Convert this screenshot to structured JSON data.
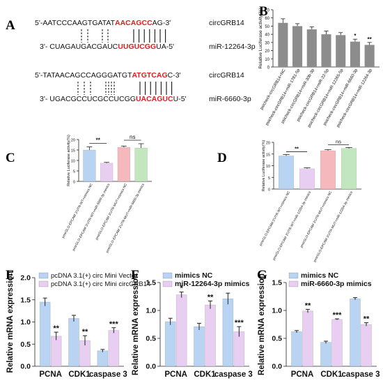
{
  "panel_letters": [
    "A",
    "B",
    "C",
    "D",
    "E",
    "F",
    "G"
  ],
  "panel_a": {
    "pair1": {
      "top_prefix": "5'-AATCCCAAGTGATAT",
      "top_red": "AACAGCC",
      "top_suffix": "AG-3'",
      "top_label": "circGRB14",
      "bottom_prefix": "3'- CUAGAUGACGAUC",
      "bottom_red": "UUGUCGG",
      "bottom_suffix": "UA-5'",
      "bottom_label": "miR-12264-3p"
    },
    "pair2": {
      "top_prefix": "5'-TATAACAGCCAGGGATGT",
      "top_red": "ATGTCAG",
      "top_suffix": "C-3'",
      "top_label": "circGRB14",
      "bottom_prefix": "3'- UGACGCCUCGCCUCGG",
      "bottom_red": "UACAGUC",
      "bottom_suffix": "U-5'",
      "bottom_label": "miR-6660-3p"
    }
  },
  "chart_data": [
    {
      "panel": "B",
      "type": "bar",
      "ylabel": "Relative Luciferase activity(%)",
      "ylim": [
        0,
        70
      ],
      "yticks": [
        0,
        10,
        20,
        30,
        40,
        50,
        60,
        70
      ],
      "categories": [
        "psicheck-circGRB14+NC",
        "psicheck-circGRB14+miR-1781-5p",
        "psicheck-circGRB14+miR-30b-3p",
        "psicheck-circGRB14+miR-22-5p",
        "psicheck-circGRB14+miR-12265-5p",
        "psicheck-circGRB14+miR-6660-3p",
        "psicheck-circGRB14+miR-12264-3p"
      ],
      "values": [
        54,
        50,
        46,
        40,
        39,
        31,
        27
      ],
      "errors": [
        5,
        3,
        3,
        4,
        3,
        3,
        3
      ],
      "significance": [
        "",
        "",
        "",
        "",
        "",
        "*",
        "**"
      ],
      "color": "#8c8c8c"
    },
    {
      "panel": "C",
      "type": "bar",
      "ylabel": "Relative Luciferase activity(%)",
      "ylim": [
        0,
        20
      ],
      "yticks": [
        0,
        5,
        10,
        15,
        20
      ],
      "categories": [
        "pmirGLO-EPCAM 3'UTR-WT+mimics NC",
        "pmirGLO-EPCAM 3'UTR-WT+miR-6660-3p mimics",
        "pmirGLO-EPCAM 3'UTR-MUT+mimics NC",
        "pmirGLO-EPCAM 3'UTR-MUT+miR-6660-3p mimics"
      ],
      "values": [
        15,
        8.7,
        16.3,
        16
      ],
      "errors": [
        1.5,
        0.4,
        0.6,
        2
      ],
      "colors": [
        "#b8d4f2",
        "#e8cff2",
        "#f5b9bd",
        "#c2e6bd"
      ],
      "brackets": [
        {
          "from": 0,
          "to": 1,
          "label": "**"
        },
        {
          "from": 2,
          "to": 3,
          "label": "ns"
        }
      ]
    },
    {
      "panel": "D",
      "type": "bar",
      "ylabel": "Relative Luciferase activity(%)",
      "ylim": [
        0,
        20
      ],
      "yticks": [
        0,
        5,
        10,
        15,
        20
      ],
      "categories": [
        "pmirGLO-EPCAM 3'UTR-WT+mimics NC",
        "pmirGLO-EPCAM 3'UTR-WT+miR-12264-3p mimics",
        "pmirGLO-EPCAM 3'UTR-MUT+mimics NC",
        "pmirGLO-EPCAM 3'UTR-MUT+miR-12264-3p mimics"
      ],
      "values": [
        14.2,
        8.7,
        16.4,
        17.4
      ],
      "errors": [
        0.6,
        0.4,
        0.5,
        0.4
      ],
      "colors": [
        "#b8d4f2",
        "#e8cff2",
        "#f5b9bd",
        "#c2e6bd"
      ],
      "brackets": [
        {
          "from": 0,
          "to": 1,
          "label": "**"
        },
        {
          "from": 2,
          "to": 3,
          "label": "ns"
        }
      ]
    },
    {
      "panel": "E",
      "type": "bar",
      "ylabel": "Relative mRNA expression",
      "ylim": [
        0,
        2.0
      ],
      "yticks": [
        "0.0",
        "0.5",
        "1.0",
        "1.5",
        "2.0"
      ],
      "categories": [
        "PCNA",
        "CDK1",
        "caspase 3"
      ],
      "series": [
        {
          "name": "pcDNA 3.1(+) circ Mini Vector",
          "values": [
            1.45,
            1.08,
            0.35
          ],
          "errors": [
            0.09,
            0.07,
            0.03
          ],
          "color": "#b8d4f2"
        },
        {
          "name": "pcDNA 3.1(+) circ Mini circGRB14",
          "values": [
            0.68,
            0.58,
            0.81
          ],
          "errors": [
            0.09,
            0.11,
            0.06
          ],
          "color": "#e8cff2"
        }
      ],
      "significance": [
        "**",
        "**",
        "***"
      ],
      "legend": "top-right"
    },
    {
      "panel": "F",
      "type": "bar",
      "ylabel": "Relative mRNA expression",
      "ylim": [
        0,
        1.5
      ],
      "yticks": [
        "0.0",
        "0.5",
        "1.0",
        "1.5"
      ],
      "categories": [
        "PCNA",
        "CDK1",
        "caspase 3"
      ],
      "series": [
        {
          "name": "mimics NC",
          "values": [
            0.8,
            0.71,
            1.21
          ],
          "errors": [
            0.06,
            0.06,
            0.1
          ],
          "color": "#b8d4f2"
        },
        {
          "name": "miR-12264-3p mimics",
          "values": [
            1.28,
            1.1,
            0.62
          ],
          "errors": [
            0.05,
            0.07,
            0.09
          ],
          "color": "#e8cff2"
        }
      ],
      "significance": [
        "*",
        "**",
        "***"
      ],
      "legend": "top-right"
    },
    {
      "panel": "G",
      "type": "bar",
      "ylabel": "Relative mRNA expression",
      "ylim": [
        0,
        1.5
      ],
      "yticks": [
        "0.0",
        "0.5",
        "1.0",
        "1.5"
      ],
      "categories": [
        "PCNA",
        "CDK1",
        "caspase 3"
      ],
      "series": [
        {
          "name": "mimics NC",
          "values": [
            0.62,
            0.43,
            1.21
          ],
          "errors": [
            0.02,
            0.02,
            0.02
          ],
          "color": "#b8d4f2"
        },
        {
          "name": "miR-6660-3p mimics",
          "values": [
            0.99,
            0.84,
            0.75
          ],
          "errors": [
            0.03,
            0.01,
            0.03
          ],
          "color": "#e8cff2"
        }
      ],
      "significance": [
        "**",
        "***",
        "**"
      ],
      "legend": "top-right"
    }
  ]
}
